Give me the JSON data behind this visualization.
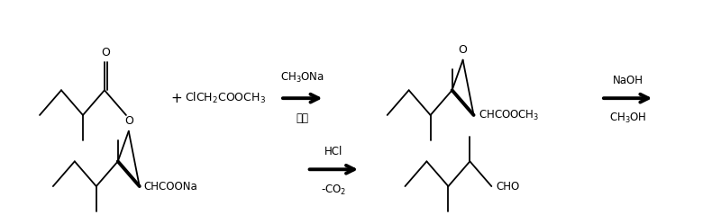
{
  "bg_color": "#ffffff",
  "line_color": "#000000",
  "lw": 1.3,
  "blw": 2.8,
  "figsize": [
    8.0,
    2.49
  ],
  "dpi": 100,
  "arrow1_label_top": "CH$_3$ONa",
  "arrow1_label_bot": "甲苯",
  "arrow2_label_top": "NaOH",
  "arrow2_label_bot": "CH$_3$OH",
  "arrow3_label_top": "HCl",
  "arrow3_label_bot": "-CO$_2$"
}
